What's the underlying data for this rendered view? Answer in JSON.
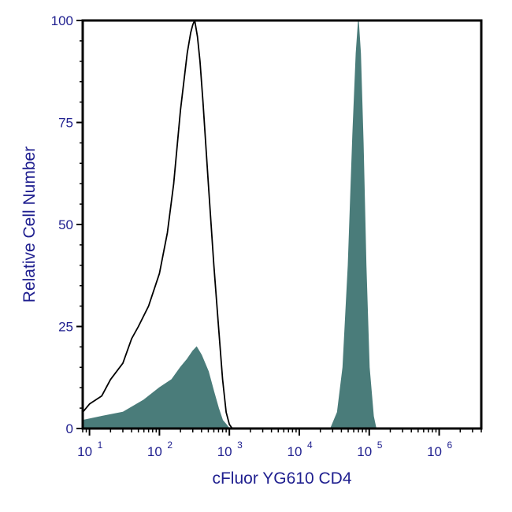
{
  "chart_data": {
    "type": "area",
    "xlabel": "cFluor YG610 CD4",
    "ylabel": "Relative Cell Number",
    "x_scale": "log",
    "xlim": [
      8,
      4000000
    ],
    "ylim": [
      0,
      100
    ],
    "grid": false,
    "y_ticks": [
      {
        "value": 0,
        "label": "0"
      },
      {
        "value": 25,
        "label": "25"
      },
      {
        "value": 50,
        "label": "50"
      },
      {
        "value": 75,
        "label": "75"
      },
      {
        "value": 100,
        "label": "100"
      }
    ],
    "x_ticks": [
      {
        "value": 10,
        "base": "10",
        "exp": "1"
      },
      {
        "value": 100,
        "base": "10",
        "exp": "2"
      },
      {
        "value": 1000,
        "base": "10",
        "exp": "3"
      },
      {
        "value": 10000,
        "base": "10",
        "exp": "4"
      },
      {
        "value": 100000,
        "base": "10",
        "exp": "5"
      },
      {
        "value": 1000000,
        "base": "10",
        "exp": "6"
      }
    ],
    "series": [
      {
        "style": "outline",
        "color": "#000000",
        "x": [
          8,
          10,
          15,
          20,
          30,
          40,
          50,
          70,
          100,
          130,
          160,
          200,
          250,
          280,
          300,
          320,
          350,
          380,
          420,
          500,
          600,
          700,
          800,
          900,
          1000,
          1100
        ],
        "y": [
          4,
          6,
          8,
          12,
          16,
          22,
          25,
          30,
          38,
          48,
          60,
          78,
          92,
          97,
          99,
          100,
          96,
          90,
          80,
          60,
          40,
          25,
          12,
          4,
          1,
          0
        ]
      },
      {
        "style": "filled",
        "color": "#4A7C7A",
        "x": [
          8,
          15,
          30,
          60,
          100,
          150,
          200,
          250,
          300,
          340,
          400,
          500,
          600,
          700,
          800,
          900,
          1000
        ],
        "y": [
          2,
          3,
          4,
          7,
          10,
          12,
          15,
          17,
          19,
          20,
          18,
          14,
          9,
          5,
          2,
          1,
          0
        ],
        "x2": [
          28000,
          35000,
          42000,
          50000,
          58000,
          65000,
          70000,
          75000,
          82000,
          90000,
          100000,
          115000,
          125000
        ],
        "y2": [
          0,
          4,
          15,
          40,
          72,
          92,
          100,
          92,
          70,
          40,
          15,
          3,
          0
        ]
      }
    ]
  }
}
